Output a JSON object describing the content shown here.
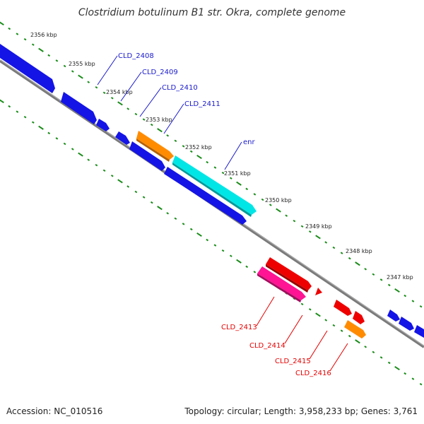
{
  "title": "Clostridium botulinum B1 str. Okra, complete genome",
  "footer": {
    "accession": "Accession: NC_010516",
    "topology": "Topology: circular; Length: 3,958,233 bp; Genes: 3,761"
  },
  "colors": {
    "backbone": "#808080",
    "tick": "#1a8c1a",
    "forward_label": "#1a1acc",
    "reverse_label": "#e60000"
  },
  "kbp_labels": [
    "2356 kbp",
    "2355 kbp",
    "2354 kbp",
    "2353 kbp",
    "2352 kbp",
    "2351 kbp",
    "2350 kbp",
    "2349 kbp",
    "2348 kbp",
    "2347 kbp"
  ],
  "forward_labels": [
    "CLD_2408",
    "CLD_2409",
    "CLD_2410",
    "CLD_2411",
    "enr"
  ],
  "reverse_labels": [
    "CLD_2413",
    "CLD_2414",
    "CLD_2415",
    "CLD_2416"
  ]
}
